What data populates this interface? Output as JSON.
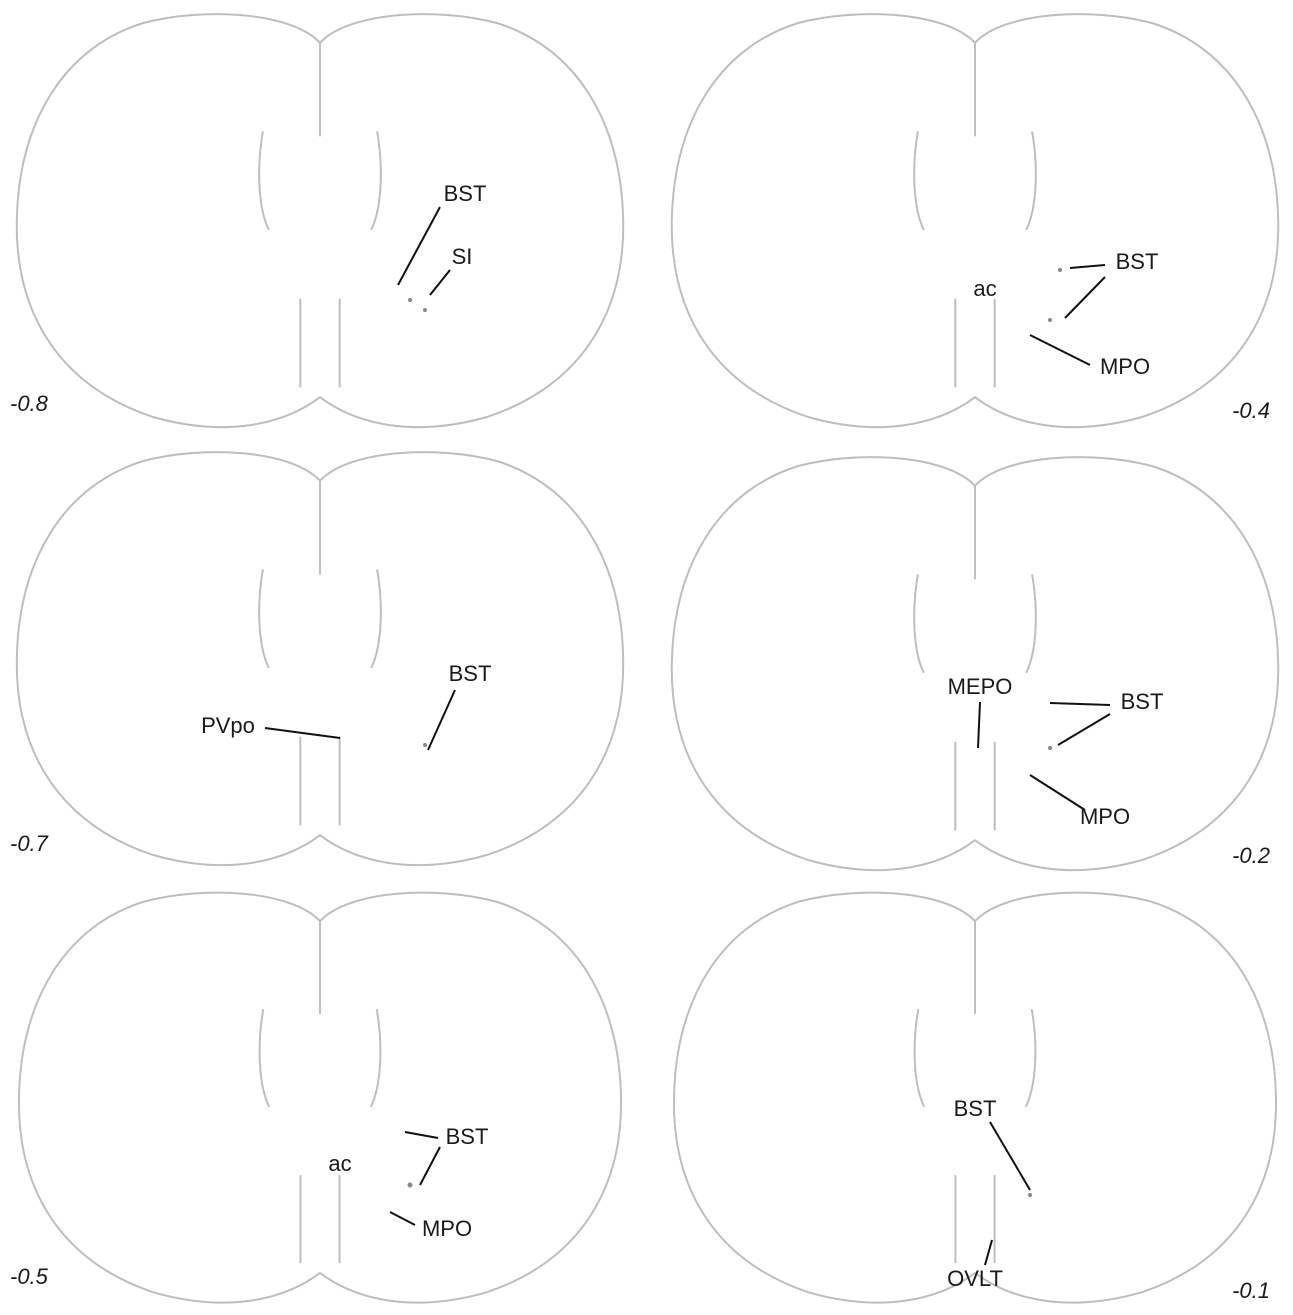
{
  "panels": [
    {
      "level": "-0.8",
      "labels": [
        "BST",
        "SI"
      ]
    },
    {
      "level": "-0.4",
      "labels": [
        "BST",
        "ac",
        "MPO"
      ]
    },
    {
      "level": "-0.7",
      "labels": [
        "BST",
        "PVpo"
      ]
    },
    {
      "level": "-0.2",
      "labels": [
        "MEPO",
        "BST",
        "MPO"
      ]
    },
    {
      "level": "-0.5",
      "labels": [
        "BST",
        "ac",
        "MPO"
      ]
    },
    {
      "level": "-0.1",
      "labels": [
        "BST",
        "OVLT"
      ]
    }
  ]
}
